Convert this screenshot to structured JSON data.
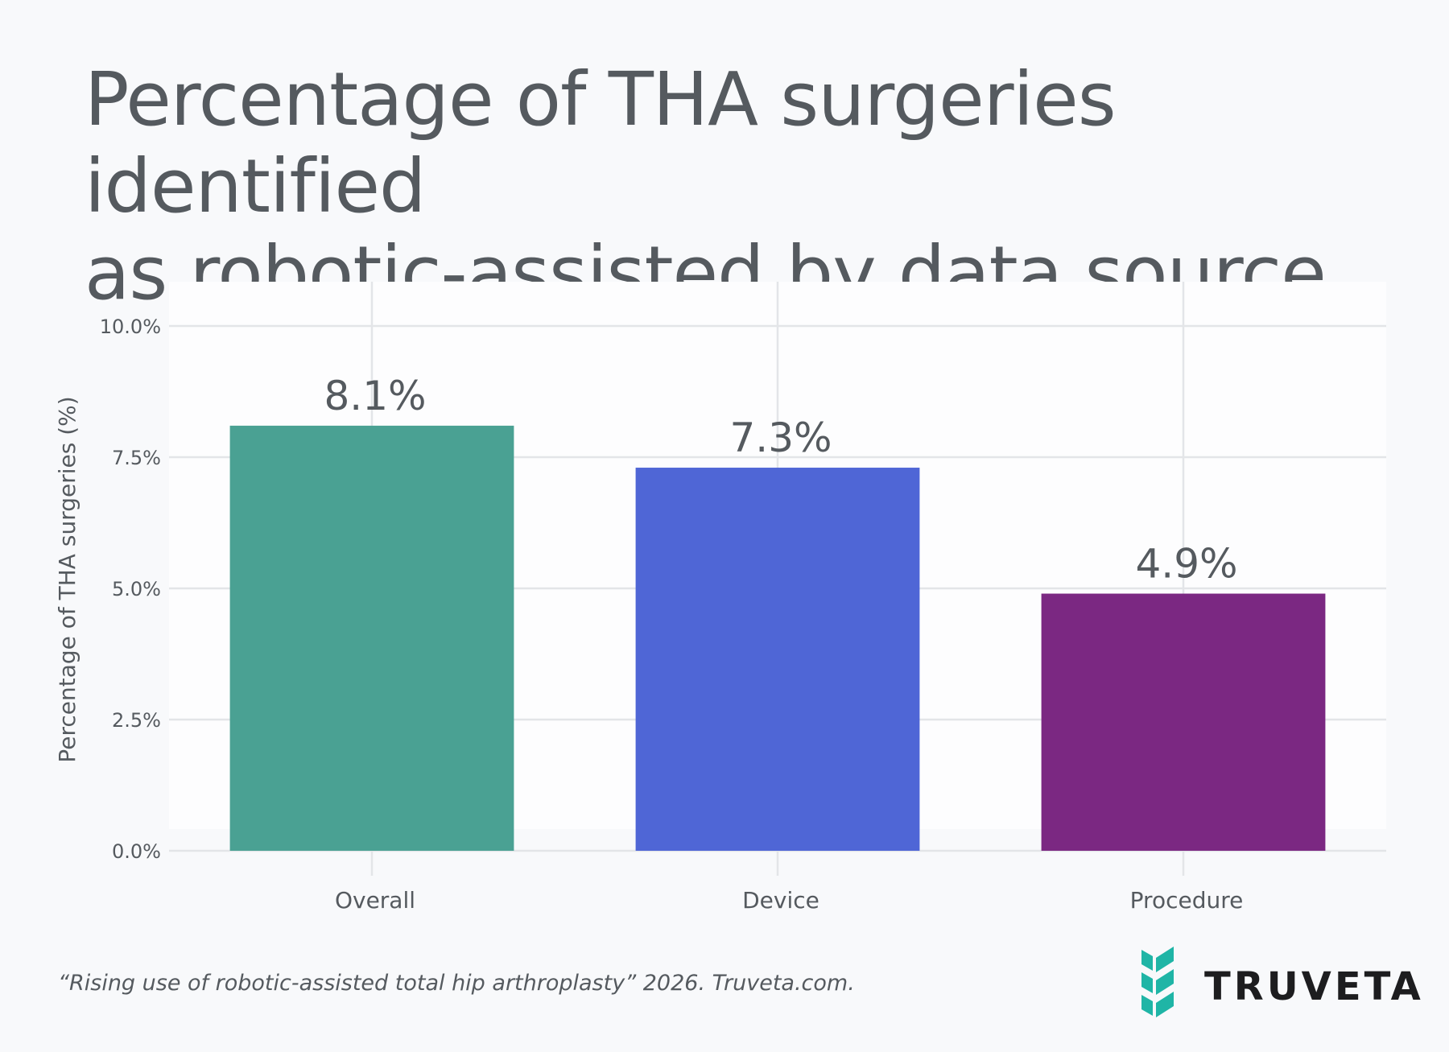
{
  "title": {
    "line1": "Percentage of THA surgeries identified",
    "line2": "as robotic-assisted by data source"
  },
  "citation": "“Rising use of robotic-assisted total hip arthroplasty” 2026. Truveta.com.",
  "brand": {
    "name": "TRUVETA",
    "logo_icon": "truveta-chevron-logo-icon",
    "logo_color": "#1fb5a6"
  },
  "chart_data": {
    "type": "bar",
    "categories": [
      "Overall",
      "Device",
      "Procedure"
    ],
    "values": [
      8.1,
      7.3,
      4.9
    ],
    "data_labels": [
      "8.1%",
      "7.3%",
      "4.9%"
    ],
    "colors": [
      "#4aa193",
      "#4f66d6",
      "#7b2882"
    ],
    "ylabel": "Percentage of THA surgeries (%)",
    "xlabel": "",
    "ylim": [
      0,
      10
    ],
    "yticks": [
      0,
      2.5,
      5,
      7.5,
      10
    ],
    "ytick_labels": [
      "0.0%",
      "2.5%",
      "5.0%",
      "7.5%",
      "10.0%"
    ],
    "grid": true
  }
}
